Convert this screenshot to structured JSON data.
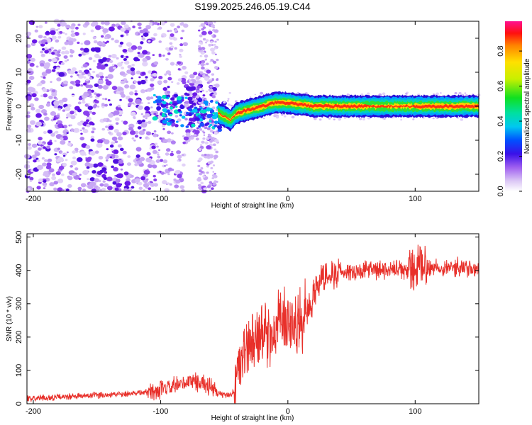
{
  "title": "S199.2025.246.05.19.C44",
  "chart_data": [
    {
      "type": "heatmap",
      "name": "spectrogram",
      "xlabel": "Height of straight line (km)",
      "ylabel": "Frequency (Hz)",
      "xlim": [
        -205,
        150
      ],
      "ylim": [
        -25,
        25
      ],
      "xticks": [
        -200,
        -100,
        0,
        100
      ],
      "yticks": [
        -20,
        -10,
        0,
        10,
        20
      ],
      "colorbar": {
        "label": "Normalized spectral amplitude",
        "range": [
          0,
          0.97
        ],
        "ticks": [
          0.0,
          0.2,
          0.4,
          0.6,
          0.8
        ]
      },
      "ridge": {
        "description_points_x": [
          -55,
          -45,
          -40,
          -30,
          -20,
          -10,
          0,
          10,
          20,
          40,
          60,
          80,
          100,
          120,
          150
        ],
        "description_points_y": [
          -2,
          -4,
          -2,
          -1,
          0,
          1,
          1,
          0.5,
          0,
          0,
          0,
          0,
          0,
          0,
          0
        ]
      }
    },
    {
      "type": "line",
      "name": "snr",
      "xlabel": "Height of straight line (km)",
      "ylabel": "SNR (10 * v/v)",
      "xlim": [
        -205,
        150
      ],
      "ylim": [
        0,
        510
      ],
      "xticks": [
        -200,
        -100,
        0,
        100
      ],
      "yticks": [
        0,
        100,
        200,
        300,
        400,
        500
      ],
      "color": "#e8302a",
      "trend_x": [
        -205,
        -150,
        -110,
        -100,
        -85,
        -75,
        -65,
        -55,
        -45,
        -42,
        -38,
        -30,
        -20,
        -10,
        -5,
        0,
        5,
        10,
        15,
        20,
        25,
        30,
        40,
        60,
        80,
        100,
        110,
        130,
        150
      ],
      "trend_y": [
        15,
        25,
        35,
        40,
        55,
        70,
        60,
        30,
        25,
        40,
        130,
        180,
        200,
        220,
        250,
        250,
        235,
        240,
        280,
        330,
        370,
        390,
        395,
        400,
        400,
        400,
        410,
        410,
        400
      ]
    }
  ]
}
